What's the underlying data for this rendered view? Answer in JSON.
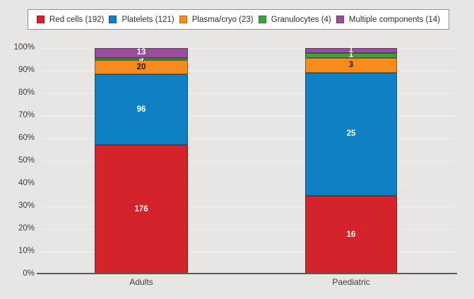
{
  "chart_data": {
    "type": "bar",
    "subtype": "100-percent-stacked-column",
    "title": "",
    "categories": [
      "Adults",
      "Paediatric"
    ],
    "series": [
      {
        "name": "Red cells (192)",
        "color": "#d4232b",
        "label_color": "#ffffff",
        "values": [
          176,
          16
        ]
      },
      {
        "name": "Platelets (121)",
        "color": "#0f80c3",
        "label_color": "#ffffff",
        "values": [
          96,
          25
        ]
      },
      {
        "name": "Plasma/cryo (23)",
        "color": "#f78c1e",
        "label_color": "#221a10",
        "values": [
          20,
          3
        ]
      },
      {
        "name": "Granulocytes (4)",
        "color": "#3ba43e",
        "label_color": "#ffffff",
        "values": [
          3,
          1
        ]
      },
      {
        "name": "Multiple components (14)",
        "color": "#9a4c9d",
        "label_color": "#ffffff",
        "values": [
          13,
          1
        ]
      }
    ],
    "y_axis": {
      "min": 0,
      "max": 100,
      "tick_step": 10,
      "tick_labels": [
        "0%",
        "10%",
        "20%",
        "30%",
        "40%",
        "50%",
        "60%",
        "70%",
        "80%",
        "90%",
        "100%"
      ]
    },
    "legend": {
      "position": "top",
      "items": [
        "Red cells (192)",
        "Platelets (121)",
        "Plasma/cryo (23)",
        "Granulocytes (4)",
        "Multiple components (14)"
      ]
    },
    "grid": true
  },
  "colors": {
    "background": "#e7e6e5",
    "legend_background": "#ffffff",
    "legend_border": "#8f8f8f",
    "gridline": "#f2f1f0",
    "axis_line": "#5a5a5a",
    "tick_text": "#3c3c3c",
    "segment_outline": "rgba(35,35,35,0.5)"
  }
}
